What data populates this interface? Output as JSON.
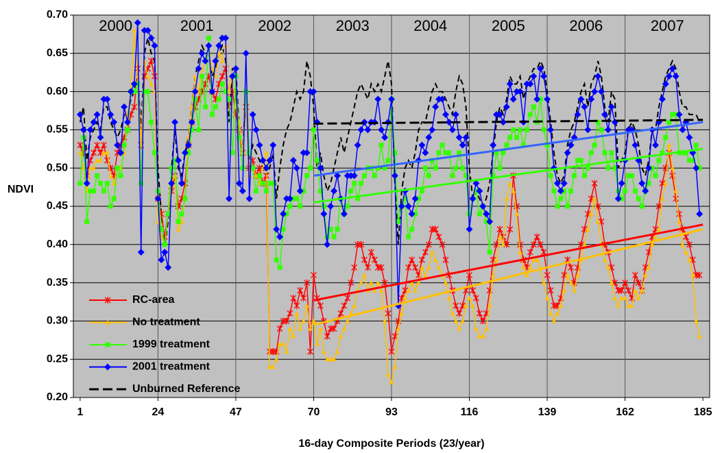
{
  "chart_data": {
    "type": "line",
    "x_label": "16-day Composite Periods (23/year)",
    "y_label": "NDVI",
    "xlim": [
      -1,
      187
    ],
    "xticks": [
      1,
      24,
      47,
      70,
      93,
      116,
      139,
      162,
      185
    ],
    "ylim": [
      0.2,
      0.7
    ],
    "yticks": [
      {
        "value": 0.2,
        "label": "0.20"
      },
      0.25,
      {
        "value": 0.3,
        "label": "0.30"
      },
      0.35,
      {
        "value": 0.4,
        "label": "0.40"
      },
      0.45,
      {
        "value": 0.5,
        "label": "0.50"
      },
      0.55,
      {
        "value": 0.6,
        "label": "0.60"
      },
      0.65,
      {
        "value": 0.7,
        "label": "0.70"
      }
    ],
    "grid": true,
    "background": "#c0c0c0",
    "legend": "lower left",
    "year_boundaries": [
      24,
      47,
      70,
      93,
      116,
      139,
      162
    ],
    "year_labels": [
      "2000",
      "2001",
      "2002",
      "2003",
      "2004",
      "2005",
      "2006",
      "2007"
    ],
    "x": [
      1,
      2,
      3,
      4,
      5,
      6,
      7,
      8,
      9,
      10,
      11,
      12,
      13,
      14,
      15,
      16,
      17,
      18,
      19,
      20,
      21,
      22,
      23,
      24,
      25,
      26,
      27,
      28,
      29,
      30,
      31,
      32,
      33,
      34,
      35,
      36,
      37,
      38,
      39,
      40,
      41,
      42,
      43,
      44,
      45,
      46,
      47,
      48,
      49,
      50,
      51,
      52,
      53,
      54,
      55,
      56,
      57,
      58,
      59,
      60,
      61,
      62,
      63,
      64,
      65,
      66,
      67,
      68,
      69,
      70,
      71,
      72,
      73,
      74,
      75,
      76,
      77,
      78,
      79,
      80,
      81,
      82,
      83,
      84,
      85,
      86,
      87,
      88,
      89,
      90,
      91,
      92,
      93,
      94,
      95,
      96,
      97,
      98,
      99,
      100,
      101,
      102,
      103,
      104,
      105,
      106,
      107,
      108,
      109,
      110,
      111,
      112,
      113,
      114,
      115,
      116,
      117,
      118,
      119,
      120,
      121,
      122,
      123,
      124,
      125,
      126,
      127,
      128,
      129,
      130,
      131,
      132,
      133,
      134,
      135,
      136,
      137,
      138,
      139,
      140,
      141,
      142,
      143,
      144,
      145,
      146,
      147,
      148,
      149,
      150,
      151,
      152,
      153,
      154,
      155,
      156,
      157,
      158,
      159,
      160,
      161,
      162,
      163,
      164,
      165,
      166,
      167,
      168,
      169,
      170,
      171,
      172,
      173,
      174,
      175,
      176,
      177,
      178,
      179,
      180,
      181,
      182,
      183,
      184
    ],
    "series": [
      {
        "name": "RC-area",
        "color": "#ff0000",
        "marker": "asterisk",
        "values": [
          0.53,
          0.52,
          0.49,
          0.51,
          0.52,
          0.53,
          0.52,
          0.53,
          0.51,
          0.5,
          0.49,
          0.52,
          0.53,
          0.54,
          0.55,
          0.57,
          0.58,
          0.63,
          0.53,
          0.62,
          0.63,
          0.64,
          0.62,
          0.46,
          0.44,
          0.41,
          0.44,
          0.47,
          0.49,
          0.45,
          0.46,
          0.48,
          0.53,
          0.56,
          0.58,
          0.59,
          0.6,
          0.61,
          0.62,
          0.6,
          0.59,
          0.61,
          0.62,
          0.63,
          0.58,
          0.6,
          0.57,
          0.55,
          0.52,
          0.58,
          0.5,
          0.51,
          0.49,
          0.5,
          0.48,
          0.49,
          0.26,
          0.26,
          0.26,
          0.29,
          0.3,
          0.3,
          0.31,
          0.33,
          0.32,
          0.34,
          0.33,
          0.35,
          0.26,
          0.36,
          0.33,
          0.32,
          0.3,
          0.28,
          0.29,
          0.29,
          0.3,
          0.31,
          0.32,
          0.33,
          0.35,
          0.37,
          0.4,
          0.4,
          0.38,
          0.37,
          0.39,
          0.38,
          0.37,
          0.37,
          0.35,
          0.31,
          0.26,
          0.28,
          0.3,
          0.33,
          0.34,
          0.37,
          0.38,
          0.37,
          0.36,
          0.38,
          0.39,
          0.4,
          0.42,
          0.42,
          0.41,
          0.4,
          0.38,
          0.36,
          0.34,
          0.32,
          0.31,
          0.32,
          0.34,
          0.36,
          0.34,
          0.33,
          0.31,
          0.3,
          0.31,
          0.34,
          0.38,
          0.4,
          0.42,
          0.41,
          0.4,
          0.42,
          0.49,
          0.45,
          0.4,
          0.38,
          0.37,
          0.39,
          0.4,
          0.41,
          0.4,
          0.39,
          0.36,
          0.34,
          0.32,
          0.32,
          0.33,
          0.36,
          0.38,
          0.37,
          0.35,
          0.37,
          0.4,
          0.42,
          0.44,
          0.46,
          0.48,
          0.45,
          0.43,
          0.4,
          0.39,
          0.37,
          0.35,
          0.34,
          0.34,
          0.35,
          0.34,
          0.33,
          0.36,
          0.35,
          0.34,
          0.37,
          0.39,
          0.41,
          0.42,
          0.45,
          0.48,
          0.5,
          0.52,
          0.49,
          0.46,
          0.44,
          0.42,
          0.41,
          0.4,
          0.38,
          0.36,
          0.36
        ]
      },
      {
        "name": "No treatment",
        "color": "#ffc000",
        "marker": "triangle",
        "values": [
          0.52,
          0.5,
          0.47,
          0.5,
          0.5,
          0.51,
          0.51,
          0.52,
          0.52,
          0.49,
          0.48,
          0.5,
          0.5,
          0.52,
          0.57,
          0.6,
          0.68,
          0.62,
          0.53,
          0.64,
          0.62,
          0.61,
          0.6,
          0.43,
          0.41,
          0.4,
          0.44,
          0.48,
          0.49,
          0.42,
          0.43,
          0.46,
          0.54,
          0.58,
          0.62,
          0.6,
          0.63,
          0.64,
          0.65,
          0.63,
          0.62,
          0.65,
          0.64,
          0.66,
          0.6,
          0.62,
          0.58,
          0.56,
          0.52,
          0.59,
          0.49,
          0.5,
          0.49,
          0.48,
          0.5,
          0.52,
          0.24,
          0.24,
          0.25,
          0.27,
          0.27,
          0.26,
          0.29,
          0.28,
          0.31,
          0.29,
          0.3,
          0.32,
          0.29,
          0.3,
          0.27,
          0.29,
          0.26,
          0.25,
          0.25,
          0.25,
          0.26,
          0.28,
          0.29,
          0.3,
          0.31,
          0.32,
          0.34,
          0.35,
          0.36,
          0.34,
          0.35,
          0.34,
          0.35,
          0.34,
          0.3,
          0.23,
          0.22,
          0.24,
          0.29,
          0.31,
          0.33,
          0.34,
          0.35,
          0.34,
          0.35,
          0.37,
          0.36,
          0.37,
          0.39,
          0.38,
          0.37,
          0.36,
          0.35,
          0.33,
          0.31,
          0.3,
          0.29,
          0.3,
          0.32,
          0.33,
          0.32,
          0.29,
          0.28,
          0.28,
          0.29,
          0.32,
          0.36,
          0.38,
          0.41,
          0.4,
          0.46,
          0.48,
          0.47,
          0.44,
          0.39,
          0.37,
          0.36,
          0.37,
          0.38,
          0.38,
          0.37,
          0.35,
          0.33,
          0.31,
          0.3,
          0.31,
          0.32,
          0.34,
          0.36,
          0.35,
          0.34,
          0.36,
          0.38,
          0.4,
          0.42,
          0.44,
          0.46,
          0.43,
          0.4,
          0.38,
          0.37,
          0.35,
          0.33,
          0.32,
          0.33,
          0.33,
          0.32,
          0.32,
          0.34,
          0.33,
          0.34,
          0.36,
          0.37,
          0.4,
          0.41,
          0.42,
          0.46,
          0.48,
          0.53,
          0.5,
          0.47,
          0.43,
          0.4,
          0.39,
          0.38,
          0.36,
          0.3,
          0.28
        ]
      },
      {
        "name": "1999 treatment",
        "color": "#33ff00",
        "marker": "square",
        "values": [
          0.48,
          0.54,
          0.43,
          0.47,
          0.47,
          0.49,
          0.48,
          0.47,
          0.48,
          0.45,
          0.46,
          0.5,
          0.49,
          0.53,
          0.55,
          0.6,
          0.6,
          0.61,
          0.48,
          0.6,
          0.6,
          0.56,
          0.52,
          0.47,
          0.42,
          0.4,
          0.44,
          0.5,
          0.51,
          0.43,
          0.44,
          0.46,
          0.52,
          0.55,
          0.59,
          0.55,
          0.62,
          0.58,
          0.67,
          0.57,
          0.58,
          0.59,
          0.61,
          0.6,
          0.59,
          0.52,
          0.62,
          0.54,
          0.5,
          0.6,
          0.52,
          0.5,
          0.47,
          0.49,
          0.48,
          0.47,
          0.48,
          0.48,
          0.38,
          0.37,
          0.42,
          0.44,
          0.45,
          0.46,
          0.46,
          0.45,
          0.47,
          0.49,
          0.5,
          0.55,
          0.51,
          0.47,
          0.45,
          0.41,
          0.42,
          0.41,
          0.42,
          0.46,
          0.44,
          0.45,
          0.47,
          0.48,
          0.46,
          0.48,
          0.49,
          0.5,
          0.5,
          0.49,
          0.5,
          0.53,
          0.5,
          0.51,
          0.59,
          0.52,
          0.43,
          0.45,
          0.46,
          0.41,
          0.42,
          0.44,
          0.46,
          0.47,
          0.5,
          0.49,
          0.51,
          0.5,
          0.52,
          0.53,
          0.52,
          0.52,
          0.49,
          0.5,
          0.52,
          0.5,
          0.49,
          0.44,
          0.46,
          0.47,
          0.44,
          0.45,
          0.43,
          0.39,
          0.49,
          0.52,
          0.5,
          0.52,
          0.53,
          0.54,
          0.55,
          0.54,
          0.55,
          0.53,
          0.55,
          0.57,
          0.58,
          0.56,
          0.59,
          0.55,
          0.53,
          0.49,
          0.47,
          0.45,
          0.46,
          0.47,
          0.45,
          0.47,
          0.49,
          0.51,
          0.51,
          0.49,
          0.5,
          0.52,
          0.53,
          0.56,
          0.55,
          0.52,
          0.5,
          0.52,
          0.5,
          0.47,
          0.46,
          0.47,
          0.49,
          0.49,
          0.47,
          0.46,
          0.45,
          0.47,
          0.48,
          0.5,
          0.49,
          0.51,
          0.52,
          0.54,
          0.56,
          0.57,
          0.57,
          0.52,
          0.52,
          0.52,
          0.51,
          0.51,
          0.53,
          0.5
        ]
      },
      {
        "name": "2001 treatment",
        "color": "#0000ff",
        "marker": "diamond",
        "values": [
          0.57,
          0.55,
          0.48,
          0.55,
          0.56,
          0.57,
          0.54,
          0.59,
          0.59,
          0.57,
          0.56,
          0.53,
          0.52,
          0.58,
          0.56,
          0.6,
          0.61,
          0.69,
          0.39,
          0.68,
          0.68,
          0.67,
          0.66,
          0.46,
          0.38,
          0.39,
          0.37,
          0.48,
          0.56,
          0.51,
          0.48,
          0.52,
          0.53,
          0.56,
          0.6,
          0.63,
          0.65,
          0.64,
          0.66,
          0.6,
          0.64,
          0.66,
          0.67,
          0.67,
          0.46,
          0.62,
          0.63,
          0.48,
          0.47,
          0.65,
          0.46,
          0.57,
          0.55,
          0.53,
          0.51,
          0.5,
          0.51,
          0.53,
          0.42,
          0.41,
          0.44,
          0.46,
          0.46,
          0.51,
          0.5,
          0.47,
          0.52,
          0.52,
          0.6,
          0.6,
          0.56,
          0.5,
          0.44,
          0.4,
          0.45,
          0.47,
          0.49,
          0.46,
          0.44,
          0.49,
          0.49,
          0.49,
          0.53,
          0.55,
          0.56,
          0.55,
          0.56,
          0.56,
          0.59,
          0.55,
          0.54,
          0.56,
          0.59,
          0.49,
          0.32,
          0.45,
          0.47,
          0.45,
          0.44,
          0.46,
          0.51,
          0.53,
          0.52,
          0.54,
          0.55,
          0.58,
          0.59,
          0.59,
          0.57,
          0.56,
          0.55,
          0.57,
          0.54,
          0.53,
          0.54,
          0.42,
          0.46,
          0.48,
          0.47,
          0.45,
          0.44,
          0.43,
          0.53,
          0.57,
          0.57,
          0.56,
          0.58,
          0.61,
          0.59,
          0.6,
          0.6,
          0.56,
          0.61,
          0.61,
          0.62,
          0.59,
          0.63,
          0.62,
          0.59,
          0.55,
          0.5,
          0.48,
          0.47,
          0.48,
          0.52,
          0.53,
          0.54,
          0.57,
          0.59,
          0.58,
          0.55,
          0.59,
          0.6,
          0.62,
          0.6,
          0.57,
          0.55,
          0.58,
          0.56,
          0.46,
          0.48,
          0.51,
          0.55,
          0.55,
          0.53,
          0.51,
          0.48,
          0.47,
          0.5,
          0.55,
          0.53,
          0.56,
          0.59,
          0.61,
          0.62,
          0.63,
          0.62,
          0.57,
          0.55,
          0.56,
          0.54,
          0.52,
          0.5,
          0.44
        ]
      },
      {
        "name": "Unburned Reference",
        "color": "#000000",
        "dashed": true,
        "values": [
          0.56,
          0.58,
          0.51,
          0.54,
          0.55,
          0.56,
          0.55,
          0.58,
          0.58,
          0.56,
          0.55,
          0.54,
          0.55,
          0.57,
          0.57,
          0.59,
          0.6,
          0.62,
          0.55,
          0.65,
          0.67,
          0.65,
          0.64,
          0.5,
          0.44,
          0.4,
          0.43,
          0.5,
          0.55,
          0.5,
          0.49,
          0.52,
          0.54,
          0.58,
          0.62,
          0.64,
          0.66,
          0.65,
          0.65,
          0.62,
          0.63,
          0.65,
          0.66,
          0.64,
          0.56,
          0.63,
          0.63,
          0.55,
          0.52,
          0.6,
          0.51,
          0.53,
          0.52,
          0.51,
          0.5,
          0.49,
          0.5,
          0.52,
          0.46,
          0.5,
          0.53,
          0.55,
          0.56,
          0.58,
          0.6,
          0.59,
          0.6,
          0.64,
          0.62,
          0.58,
          0.5,
          0.52,
          0.49,
          0.47,
          0.48,
          0.5,
          0.52,
          0.54,
          0.52,
          0.54,
          0.56,
          0.58,
          0.6,
          0.61,
          0.6,
          0.59,
          0.61,
          0.6,
          0.61,
          0.6,
          0.62,
          0.64,
          0.61,
          0.48,
          0.4,
          0.47,
          0.5,
          0.51,
          0.5,
          0.52,
          0.55,
          0.56,
          0.56,
          0.58,
          0.6,
          0.61,
          0.6,
          0.6,
          0.59,
          0.58,
          0.57,
          0.6,
          0.62,
          0.61,
          0.58,
          0.5,
          0.46,
          0.47,
          0.46,
          0.45,
          0.46,
          0.48,
          0.52,
          0.56,
          0.58,
          0.57,
          0.59,
          0.62,
          0.61,
          0.61,
          0.62,
          0.59,
          0.61,
          0.62,
          0.63,
          0.63,
          0.64,
          0.63,
          0.6,
          0.56,
          0.52,
          0.49,
          0.48,
          0.49,
          0.53,
          0.55,
          0.56,
          0.58,
          0.6,
          0.61,
          0.58,
          0.61,
          0.62,
          0.64,
          0.62,
          0.58,
          0.56,
          0.6,
          0.59,
          0.5,
          0.51,
          0.52,
          0.55,
          0.56,
          0.55,
          0.53,
          0.5,
          0.49,
          0.51,
          0.55,
          0.55,
          0.58,
          0.6,
          0.62,
          0.63,
          0.64,
          0.63,
          0.6,
          0.58,
          0.58,
          0.57,
          0.57,
          0.57,
          0.56
        ]
      }
    ],
    "trendlines": [
      {
        "color": "#ffc000",
        "x": [
          70,
          185
        ],
        "values": [
          0.295,
          0.42
        ]
      },
      {
        "color": "#ff0000",
        "x": [
          70,
          185
        ],
        "values": [
          0.327,
          0.426
        ]
      },
      {
        "color": "#33ff00",
        "x": [
          70,
          185
        ],
        "values": [
          0.455,
          0.525
        ]
      },
      {
        "color": "#3366ff",
        "x": [
          70,
          185
        ],
        "values": [
          0.49,
          0.56
        ]
      },
      {
        "color": "#000000",
        "dashed": true,
        "x": [
          70,
          185
        ],
        "values": [
          0.558,
          0.563
        ]
      }
    ]
  }
}
